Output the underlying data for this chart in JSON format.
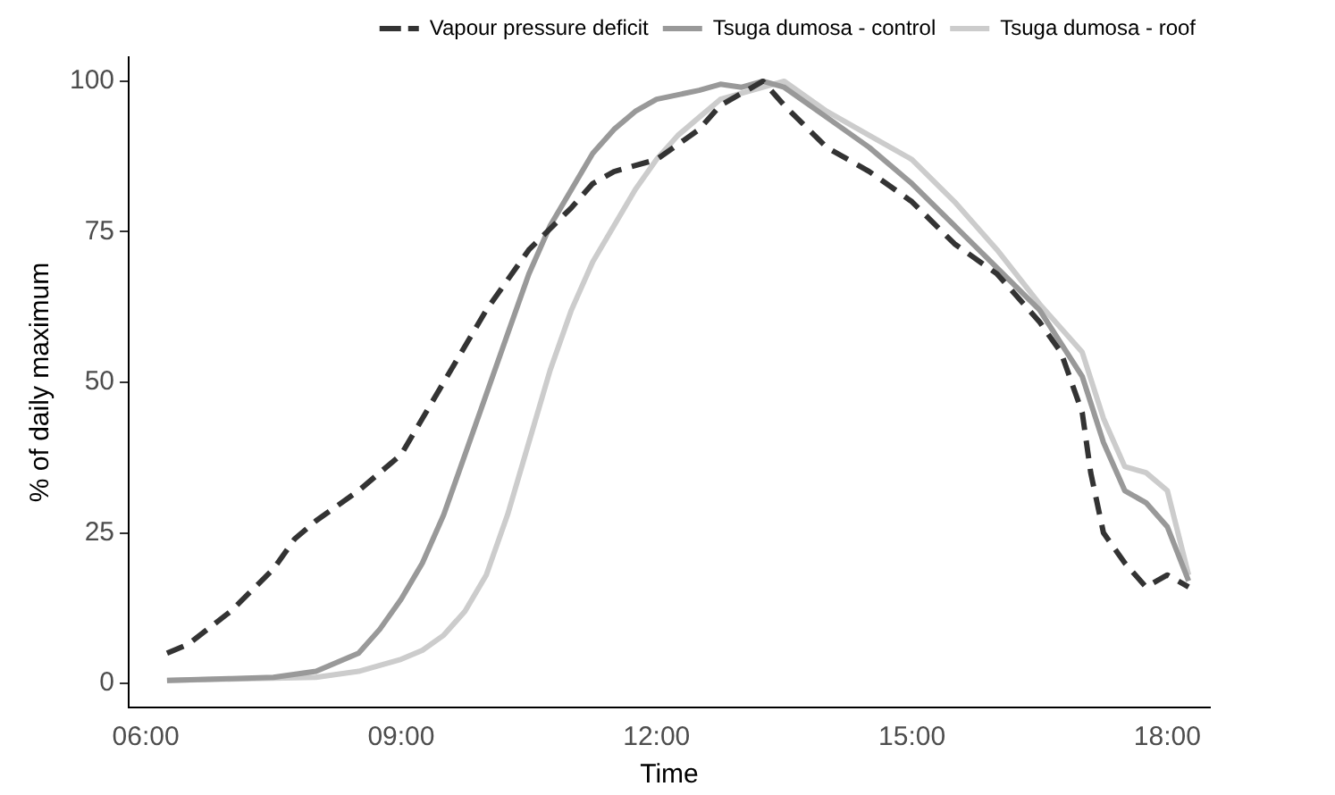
{
  "chart_data": {
    "type": "line",
    "xlabel": "Time",
    "ylabel": "% of daily maximum",
    "legend": "top right",
    "grid": false,
    "marker": "none",
    "xlim": [
      5.8,
      18.5
    ],
    "xticks": [
      {
        "value": 6,
        "label": "06:00"
      },
      {
        "value": 9,
        "label": "09:00"
      },
      {
        "value": 12,
        "label": "12:00"
      },
      {
        "value": 15,
        "label": "15:00"
      },
      {
        "value": 18,
        "label": "18:00"
      }
    ],
    "ylim": [
      -4,
      104
    ],
    "yticks": [
      0,
      25,
      50,
      75,
      100
    ],
    "series": [
      {
        "name": "Vapour pressure deficit",
        "color": "#333333",
        "line_style": "dashed",
        "x": [
          6.25,
          6.5,
          7,
          7.5,
          7.75,
          8,
          8.5,
          9,
          9.5,
          10,
          10.5,
          11,
          11.25,
          11.5,
          12,
          12.5,
          12.75,
          13,
          13.25,
          13.5,
          14,
          14.5,
          15,
          15.5,
          16,
          16.5,
          16.75,
          17,
          17.1,
          17.25,
          17.5,
          17.75,
          18,
          18.25
        ],
        "values": [
          5,
          6.5,
          12,
          19,
          24,
          27,
          32,
          38,
          50,
          62,
          72,
          79,
          83,
          85,
          87,
          92,
          96,
          98,
          100,
          96,
          89,
          85,
          80,
          73,
          68,
          60,
          55,
          45,
          35,
          25,
          20,
          16,
          18,
          16
        ]
      },
      {
        "name": "Tsuga dumosa - control",
        "color": "#999999",
        "line_style": "solid",
        "x": [
          6.25,
          7,
          7.5,
          8,
          8.5,
          8.75,
          9,
          9.25,
          9.5,
          9.75,
          10,
          10.25,
          10.5,
          10.75,
          11,
          11.25,
          11.5,
          11.75,
          12,
          12.5,
          12.75,
          13,
          13.25,
          13.5,
          14,
          14.5,
          15,
          15.5,
          16,
          16.5,
          17,
          17.25,
          17.5,
          17.75,
          18,
          18.25
        ],
        "values": [
          0.5,
          0.8,
          1,
          2,
          5,
          9,
          14,
          20,
          28,
          38,
          48,
          58,
          68,
          76,
          82,
          88,
          92,
          95,
          97,
          98.5,
          99.5,
          99,
          100,
          99,
          94,
          89,
          83,
          76,
          69,
          62,
          51,
          40,
          32,
          30,
          26,
          17
        ]
      },
      {
        "name": "Tsuga dumosa - roof",
        "color": "#cccccc",
        "line_style": "solid",
        "x": [
          6.25,
          7,
          8,
          8.5,
          9,
          9.25,
          9.5,
          9.75,
          10,
          10.25,
          10.5,
          10.75,
          11,
          11.25,
          11.5,
          11.75,
          12,
          12.25,
          12.5,
          12.75,
          13,
          13.25,
          13.5,
          14,
          14.5,
          15,
          15.5,
          16,
          16.5,
          17,
          17.25,
          17.5,
          17.75,
          18,
          18.25
        ],
        "values": [
          0.5,
          0.7,
          1,
          2,
          4,
          5.5,
          8,
          12,
          18,
          28,
          40,
          52,
          62,
          70,
          76,
          82,
          87,
          91,
          94,
          97,
          98,
          99,
          100,
          95,
          91,
          87,
          80,
          72,
          63,
          55,
          44,
          36,
          35,
          32,
          18
        ]
      }
    ]
  }
}
